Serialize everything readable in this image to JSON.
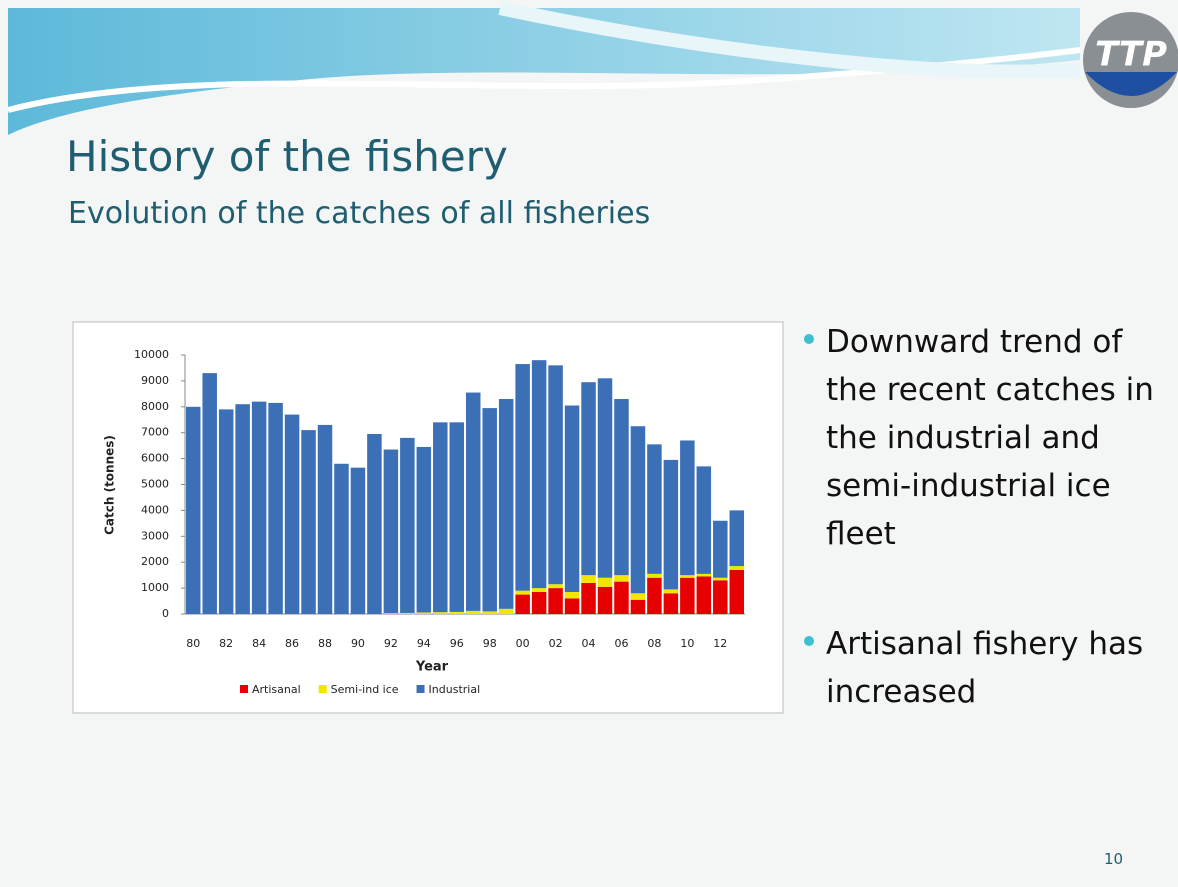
{
  "slide": {
    "title": "History of the fishery",
    "subtitle": "Evolution of the catches of all fisheries",
    "logo": "TTP",
    "bullets": [
      "Downward trend of the recent catches in the industrial and semi-industrial ice fleet",
      "Artisanal fishery has increased"
    ],
    "page_number": "10"
  },
  "chart_data": {
    "type": "stacked-bar",
    "xlabel": "Year",
    "ylabel": "Catch (tonnes)",
    "categories": [
      "80",
      null,
      "82",
      null,
      "84",
      null,
      "86",
      null,
      "88",
      null,
      "90",
      null,
      "92",
      null,
      "94",
      null,
      "96",
      null,
      "98",
      null,
      "00",
      null,
      "02",
      null,
      "04",
      null,
      "06",
      null,
      "08",
      null,
      "10",
      null,
      "12",
      null
    ],
    "series": [
      {
        "name": "Artisanal",
        "color": "#e60000",
        "values": [
          0,
          0,
          0,
          0,
          0,
          0,
          0,
          0,
          0,
          0,
          0,
          0,
          0,
          0,
          0,
          0,
          0,
          0,
          0,
          0,
          750,
          850,
          1000,
          600,
          1200,
          1050,
          1250,
          550,
          1400,
          800,
          1400,
          1450,
          1300,
          1700
        ]
      },
      {
        "name": "Semi-ind ice",
        "color": "#f2e600",
        "values": [
          0,
          0,
          0,
          0,
          0,
          0,
          0,
          0,
          0,
          0,
          0,
          0,
          30,
          40,
          60,
          70,
          80,
          120,
          100,
          200,
          150,
          150,
          150,
          250,
          300,
          350,
          250,
          250,
          150,
          150,
          100,
          100,
          100,
          150
        ]
      },
      {
        "name": "Industrial",
        "color": "#3b6fb6",
        "values": [
          8000,
          9300,
          7900,
          8100,
          8200,
          8150,
          7700,
          7100,
          7300,
          5800,
          5650,
          6950,
          6320,
          6760,
          6390,
          7330,
          7320,
          8430,
          7850,
          8100,
          8750,
          8800,
          8450,
          7200,
          7450,
          7700,
          6800,
          6450,
          5000,
          5000,
          5200,
          4150,
          2200,
          2150
        ]
      }
    ],
    "ylim": [
      0,
      10000
    ],
    "yticks": [
      0,
      1000,
      2000,
      3000,
      4000,
      5000,
      6000,
      7000,
      8000,
      9000,
      10000
    ],
    "grid": false,
    "legend": "bottom"
  }
}
